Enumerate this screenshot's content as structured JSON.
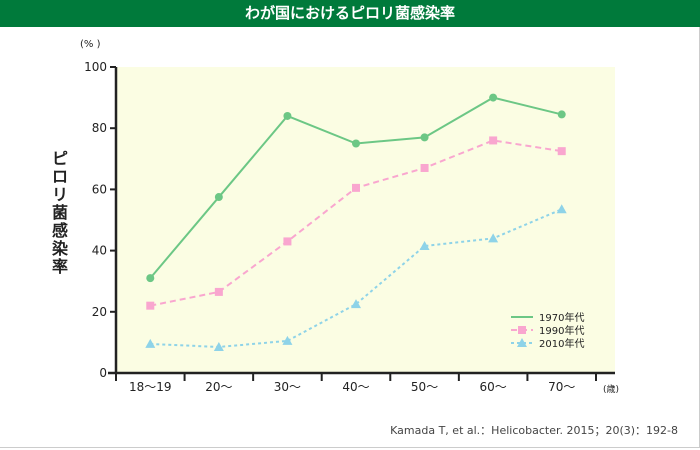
{
  "header": {
    "title": "わが国におけるピロリ菌感染率"
  },
  "chart_data": {
    "type": "line",
    "title": "わが国におけるピロリ菌感染率",
    "ylabel": "ピロリ菌感染率",
    "yunit": "(%  )",
    "xunit": "(歳)",
    "xlabel": "",
    "ylim": [
      0,
      100
    ],
    "yticks": [
      0,
      20,
      40,
      60,
      80,
      100
    ],
    "categories": [
      "18〜19",
      "20〜",
      "30〜",
      "40〜",
      "50〜",
      "60〜",
      "70〜"
    ],
    "series": [
      {
        "name": "1970年代",
        "color": "#6cc785",
        "dash": "",
        "marker": "circle",
        "values": [
          31,
          57.5,
          84,
          75,
          77,
          90,
          84.5
        ]
      },
      {
        "name": "1990年代",
        "color": "#f9a6cf",
        "dash": "6,4",
        "marker": "square",
        "values": [
          22,
          26.5,
          43,
          60.5,
          67,
          76,
          72.5
        ]
      },
      {
        "name": "2010年代",
        "color": "#8ed3e8",
        "dash": "3,3",
        "marker": "triangle",
        "values": [
          9.5,
          8.5,
          10.5,
          22.5,
          41.5,
          44,
          53.5
        ]
      }
    ],
    "legend": "bottom-right",
    "grid": false
  },
  "source": "Kamada T, et al.：Helicobacter. 2015；20(3)：192-8"
}
